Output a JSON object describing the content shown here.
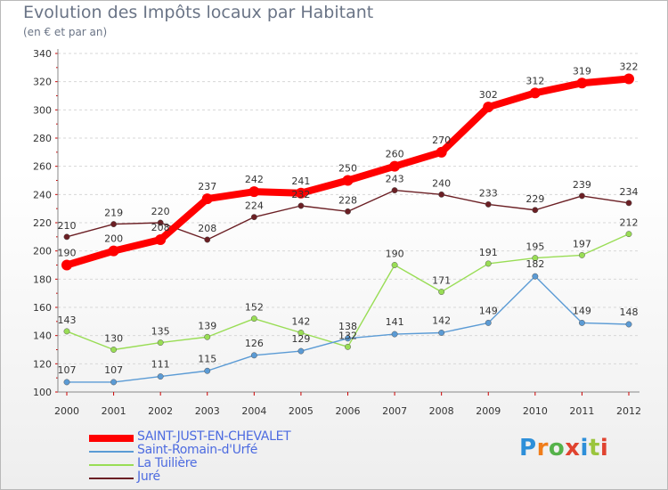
{
  "title": "Evolution des Impôts locaux par Habitant",
  "subtitle": "(en € et par an)",
  "logo": {
    "text": "Proxiti",
    "letter_colors": [
      "#2d8fd9",
      "#f07d1a",
      "#55b24a",
      "#e0432f",
      "#2d8fd9",
      "#9bc53d",
      "#e0432f"
    ]
  },
  "chart_data": {
    "type": "line",
    "x": [
      2000,
      2001,
      2002,
      2003,
      2004,
      2005,
      2006,
      2007,
      2008,
      2009,
      2010,
      2011,
      2012
    ],
    "ylim": [
      100,
      340
    ],
    "yticks": [
      100,
      120,
      140,
      160,
      180,
      200,
      220,
      240,
      260,
      280,
      300,
      320,
      340
    ],
    "grid": "horizontal",
    "legend_position": "bottom-left",
    "series": [
      {
        "name": "SAINT-JUST-EN-CHEVALET",
        "color": "#ff0000",
        "values": [
          190,
          200,
          208,
          237,
          242,
          241,
          250,
          260,
          270,
          302,
          312,
          319,
          322
        ]
      },
      {
        "name": "Saint-Romain-d'Urfé",
        "color": "#5b9bd5",
        "values": [
          107,
          107,
          111,
          115,
          126,
          129,
          138,
          141,
          142,
          149,
          182,
          149,
          148
        ]
      },
      {
        "name": "La Tuilière",
        "color": "#99dd55",
        "values": [
          143,
          130,
          135,
          139,
          152,
          142,
          132,
          190,
          171,
          191,
          195,
          197,
          212
        ]
      },
      {
        "name": "Juré",
        "color": "#6b1f24",
        "values": [
          210,
          219,
          220,
          208,
          224,
          232,
          228,
          243,
          240,
          233,
          229,
          239,
          234
        ]
      }
    ]
  }
}
